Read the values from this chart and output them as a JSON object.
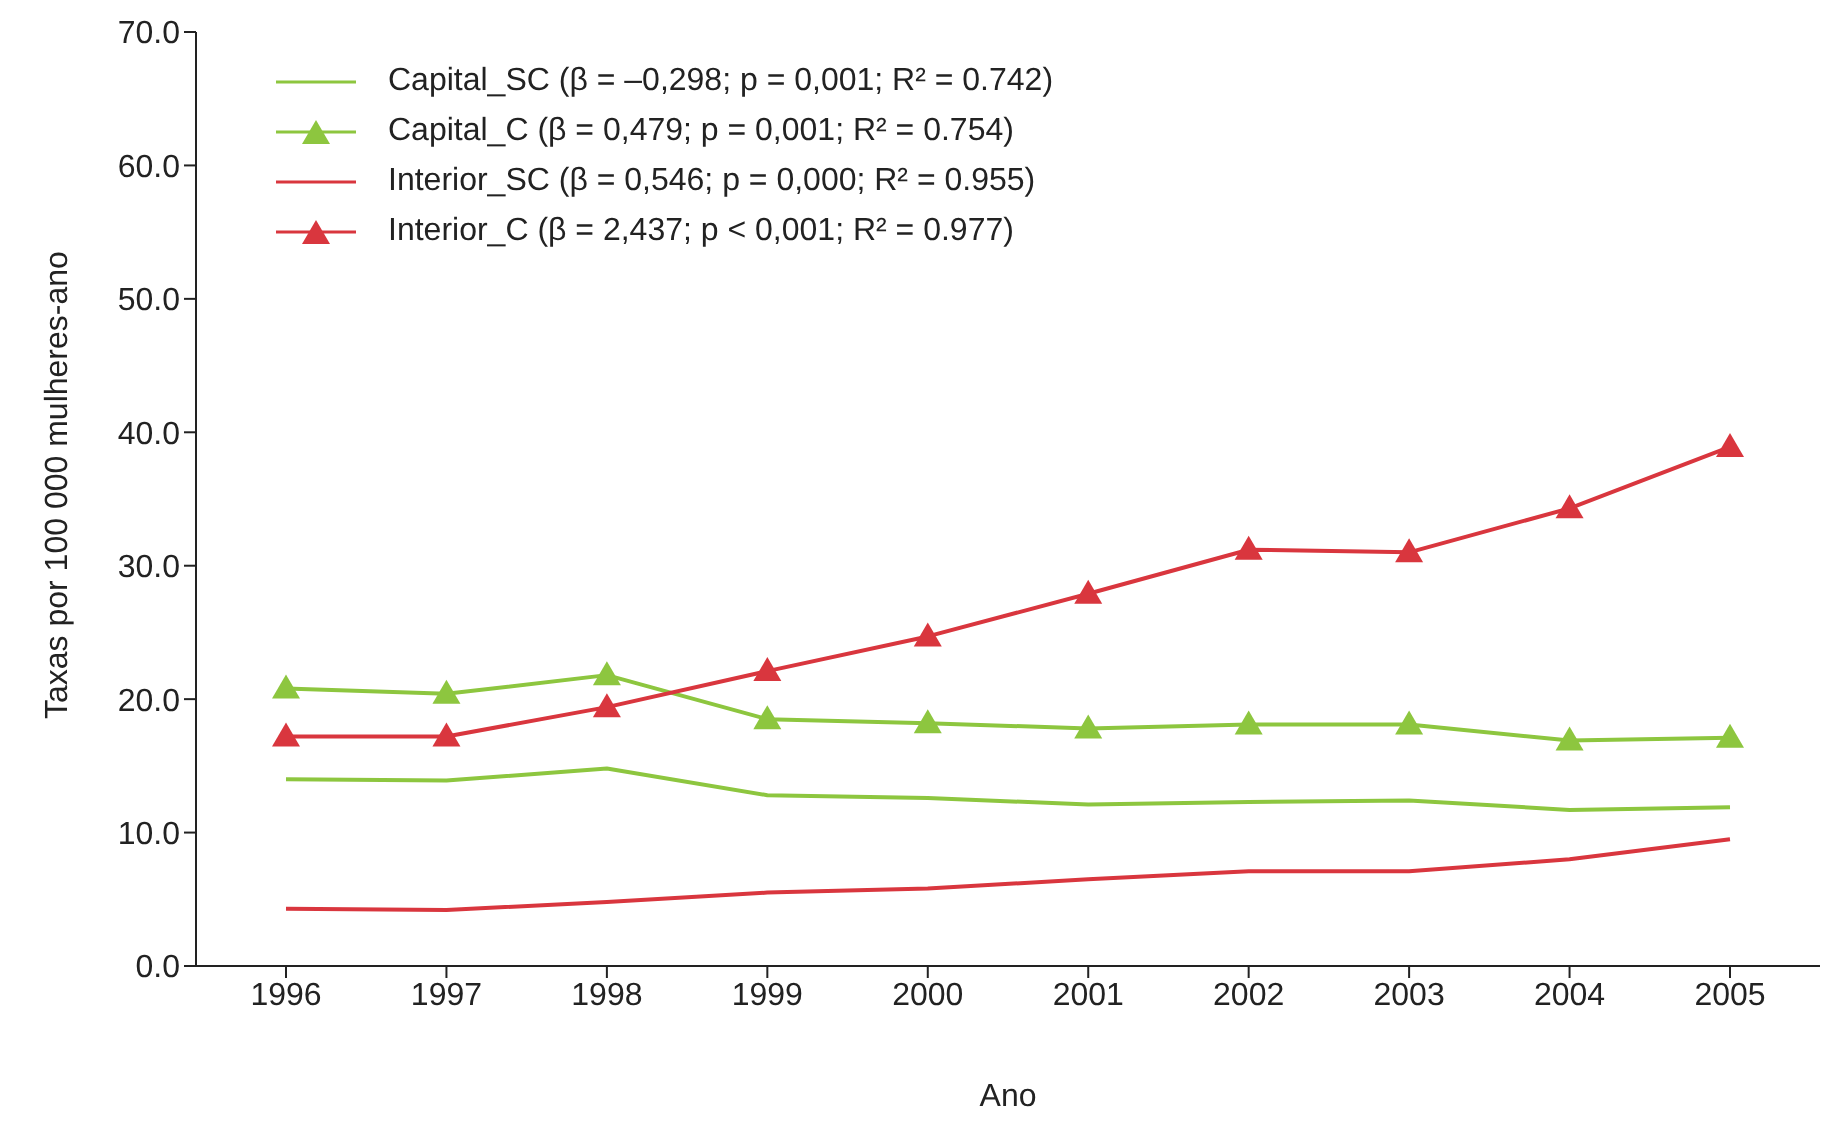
{
  "chart_data": {
    "type": "line",
    "xlabel": "Ano",
    "ylabel": "Taxas por 100 000 mulheres-ano",
    "categories": [
      "1996",
      "1997",
      "1998",
      "1999",
      "2000",
      "2001",
      "2002",
      "2003",
      "2004",
      "2005"
    ],
    "ylim": [
      0,
      70
    ],
    "yticks": [
      {
        "value": 0,
        "label": "0.0"
      },
      {
        "value": 10,
        "label": "10.0"
      },
      {
        "value": 20,
        "label": "20.0"
      },
      {
        "value": 30,
        "label": "30.0"
      },
      {
        "value": 40,
        "label": "40.0"
      },
      {
        "value": 50,
        "label": "50.0"
      },
      {
        "value": 60,
        "label": "60.0"
      },
      {
        "value": 70,
        "label": "70.0"
      }
    ],
    "grid": false,
    "legend": "top left",
    "line_style": "solid",
    "series": [
      {
        "name": "Capital_SC (β = –0,298; p = 0,001; R² = 0.742)",
        "color": "#8dc63f",
        "marker": "none",
        "values": [
          14.0,
          13.9,
          14.8,
          12.8,
          12.6,
          12.1,
          12.3,
          12.4,
          11.7,
          11.9
        ]
      },
      {
        "name": "Capital_C (β = 0,479; p = 0,001; R² = 0.754)",
        "color": "#8dc63f",
        "marker": "triangle",
        "values": [
          20.8,
          20.4,
          21.8,
          18.5,
          18.2,
          17.8,
          18.1,
          18.1,
          16.9,
          17.1
        ]
      },
      {
        "name": "Interior_SC (β = 0,546; p = 0,000; R² = 0.955)",
        "color": "#d9363e",
        "marker": "none",
        "values": [
          4.3,
          4.2,
          4.8,
          5.5,
          5.8,
          6.5,
          7.1,
          7.1,
          8.0,
          9.5
        ]
      },
      {
        "name": "Interior_C (β = 2,437; p < 0,001; R² = 0.977)",
        "color": "#d9363e",
        "marker": "triangle",
        "values": [
          17.2,
          17.2,
          19.4,
          22.1,
          24.7,
          27.9,
          31.2,
          31.0,
          34.3,
          38.9
        ]
      }
    ]
  }
}
